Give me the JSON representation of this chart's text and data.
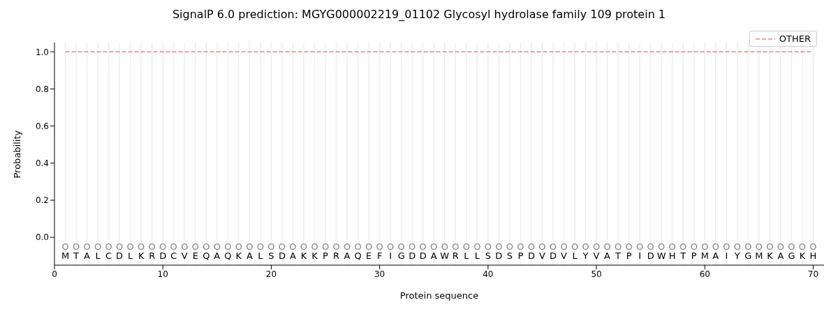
{
  "chart_data": {
    "type": "line",
    "title": "SignalP 6.0 prediction: MGYG000002219_01102 Glycosyl hydrolase family 109 protein 1",
    "xlabel": "Protein sequence",
    "ylabel": "Probability",
    "series": [
      {
        "name": "OTHER",
        "color": "#f08080",
        "line_style": "dashed",
        "x": [
          1,
          70
        ],
        "values": [
          1,
          1
        ]
      }
    ],
    "xlim": [
      0,
      71
    ],
    "xticks": [
      0,
      10,
      20,
      30,
      40,
      50,
      60,
      70
    ],
    "ylim": [
      -0.15,
      1.05
    ],
    "yticks": [
      {
        "value": 0,
        "label": "0.0"
      },
      {
        "value": 0.2,
        "label": "0.2"
      },
      {
        "value": 0.4,
        "label": "0.4"
      },
      {
        "value": 0.6,
        "label": "0.6"
      },
      {
        "value": 0.8,
        "label": "0.8"
      },
      {
        "value": 1,
        "label": "1.0"
      }
    ],
    "legend": "top right",
    "marker": "none",
    "ref_lines": [
      {
        "axis": "x",
        "value": 1,
        "color": "#eeeeee"
      },
      {
        "axis": "x",
        "value": 2,
        "color": "#eeeeee"
      },
      {
        "axis": "x",
        "value": 3,
        "color": "#eeeeee"
      },
      {
        "axis": "x",
        "value": 4,
        "color": "#eeeeee"
      },
      {
        "axis": "x",
        "value": 5,
        "color": "#eeeeee"
      },
      {
        "axis": "x",
        "value": 6,
        "color": "#eeeeee"
      },
      {
        "axis": "x",
        "value": 7,
        "color": "#eeeeee"
      },
      {
        "axis": "x",
        "value": 8,
        "color": "#eeeeee"
      },
      {
        "axis": "x",
        "value": 9,
        "color": "#eeeeee"
      },
      {
        "axis": "x",
        "value": 10,
        "color": "#eeeeee"
      },
      {
        "axis": "x",
        "value": 11,
        "color": "#eeeeee"
      },
      {
        "axis": "x",
        "value": 12,
        "color": "#eeeeee"
      },
      {
        "axis": "x",
        "value": 13,
        "color": "#eeeeee"
      },
      {
        "axis": "x",
        "value": 14,
        "color": "#eeeeee"
      },
      {
        "axis": "x",
        "value": 15,
        "color": "#eeeeee"
      },
      {
        "axis": "x",
        "value": 16,
        "color": "#eeeeee"
      },
      {
        "axis": "x",
        "value": 17,
        "color": "#eeeeee"
      },
      {
        "axis": "x",
        "value": 18,
        "color": "#eeeeee"
      },
      {
        "axis": "x",
        "value": 19,
        "color": "#eeeeee"
      },
      {
        "axis": "x",
        "value": 20,
        "color": "#eeeeee"
      },
      {
        "axis": "x",
        "value": 21,
        "color": "#eeeeee"
      },
      {
        "axis": "x",
        "value": 22,
        "color": "#eeeeee"
      },
      {
        "axis": "x",
        "value": 23,
        "color": "#eeeeee"
      },
      {
        "axis": "x",
        "value": 24,
        "color": "#eeeeee"
      },
      {
        "axis": "x",
        "value": 25,
        "color": "#eeeeee"
      },
      {
        "axis": "x",
        "value": 26,
        "color": "#eeeeee"
      },
      {
        "axis": "x",
        "value": 27,
        "color": "#eeeeee"
      },
      {
        "axis": "x",
        "value": 28,
        "color": "#eeeeee"
      },
      {
        "axis": "x",
        "value": 29,
        "color": "#eeeeee"
      },
      {
        "axis": "x",
        "value": 30,
        "color": "#eeeeee"
      },
      {
        "axis": "x",
        "value": 31,
        "color": "#eeeeee"
      },
      {
        "axis": "x",
        "value": 32,
        "color": "#eeeeee"
      },
      {
        "axis": "x",
        "value": 33,
        "color": "#eeeeee"
      },
      {
        "axis": "x",
        "value": 34,
        "color": "#eeeeee"
      },
      {
        "axis": "x",
        "value": 35,
        "color": "#eeeeee"
      },
      {
        "axis": "x",
        "value": 36,
        "color": "#eeeeee"
      },
      {
        "axis": "x",
        "value": 37,
        "color": "#eeeeee"
      },
      {
        "axis": "x",
        "value": 38,
        "color": "#eeeeee"
      },
      {
        "axis": "x",
        "value": 39,
        "color": "#eeeeee"
      },
      {
        "axis": "x",
        "value": 40,
        "color": "#eeeeee"
      },
      {
        "axis": "x",
        "value": 41,
        "color": "#eeeeee"
      },
      {
        "axis": "x",
        "value": 42,
        "color": "#eeeeee"
      },
      {
        "axis": "x",
        "value": 43,
        "color": "#eeeeee"
      },
      {
        "axis": "x",
        "value": 44,
        "color": "#eeeeee"
      },
      {
        "axis": "x",
        "value": 45,
        "color": "#eeeeee"
      },
      {
        "axis": "x",
        "value": 46,
        "color": "#eeeeee"
      },
      {
        "axis": "x",
        "value": 47,
        "color": "#eeeeee"
      },
      {
        "axis": "x",
        "value": 48,
        "color": "#eeeeee"
      },
      {
        "axis": "x",
        "value": 49,
        "color": "#eeeeee"
      },
      {
        "axis": "x",
        "value": 50,
        "color": "#eeeeee"
      },
      {
        "axis": "x",
        "value": 51,
        "color": "#eeeeee"
      },
      {
        "axis": "x",
        "value": 52,
        "color": "#eeeeee"
      },
      {
        "axis": "x",
        "value": 53,
        "color": "#eeeeee"
      },
      {
        "axis": "x",
        "value": 54,
        "color": "#eeeeee"
      },
      {
        "axis": "x",
        "value": 55,
        "color": "#eeeeee"
      },
      {
        "axis": "x",
        "value": 56,
        "color": "#eeeeee"
      },
      {
        "axis": "x",
        "value": 57,
        "color": "#eeeeee"
      },
      {
        "axis": "x",
        "value": 58,
        "color": "#eeeeee"
      },
      {
        "axis": "x",
        "value": 59,
        "color": "#eeeeee"
      },
      {
        "axis": "x",
        "value": 60,
        "color": "#eeeeee"
      },
      {
        "axis": "x",
        "value": 61,
        "color": "#eeeeee"
      },
      {
        "axis": "x",
        "value": 62,
        "color": "#eeeeee"
      },
      {
        "axis": "x",
        "value": 63,
        "color": "#eeeeee"
      },
      {
        "axis": "x",
        "value": 64,
        "color": "#eeeeee"
      },
      {
        "axis": "x",
        "value": 65,
        "color": "#eeeeee"
      },
      {
        "axis": "x",
        "value": 66,
        "color": "#eeeeee"
      },
      {
        "axis": "x",
        "value": 67,
        "color": "#eeeeee"
      },
      {
        "axis": "x",
        "value": 68,
        "color": "#eeeeee"
      },
      {
        "axis": "x",
        "value": 69,
        "color": "#eeeeee"
      },
      {
        "axis": "x",
        "value": 70,
        "color": "#eeeeee"
      }
    ],
    "annotations": [
      {
        "text": "O",
        "x": 1,
        "y": -0.05
      },
      {
        "text": "O",
        "x": 2,
        "y": -0.05
      },
      {
        "text": "O",
        "x": 3,
        "y": -0.05
      },
      {
        "text": "O",
        "x": 4,
        "y": -0.05
      },
      {
        "text": "O",
        "x": 5,
        "y": -0.05
      },
      {
        "text": "O",
        "x": 6,
        "y": -0.05
      },
      {
        "text": "O",
        "x": 7,
        "y": -0.05
      },
      {
        "text": "O",
        "x": 8,
        "y": -0.05
      },
      {
        "text": "O",
        "x": 9,
        "y": -0.05
      },
      {
        "text": "O",
        "x": 10,
        "y": -0.05
      },
      {
        "text": "O",
        "x": 11,
        "y": -0.05
      },
      {
        "text": "O",
        "x": 12,
        "y": -0.05
      },
      {
        "text": "O",
        "x": 13,
        "y": -0.05
      },
      {
        "text": "O",
        "x": 14,
        "y": -0.05
      },
      {
        "text": "O",
        "x": 15,
        "y": -0.05
      },
      {
        "text": "O",
        "x": 16,
        "y": -0.05
      },
      {
        "text": "O",
        "x": 17,
        "y": -0.05
      },
      {
        "text": "O",
        "x": 18,
        "y": -0.05
      },
      {
        "text": "O",
        "x": 19,
        "y": -0.05
      },
      {
        "text": "O",
        "x": 20,
        "y": -0.05
      },
      {
        "text": "O",
        "x": 21,
        "y": -0.05
      },
      {
        "text": "O",
        "x": 22,
        "y": -0.05
      },
      {
        "text": "O",
        "x": 23,
        "y": -0.05
      },
      {
        "text": "O",
        "x": 24,
        "y": -0.05
      },
      {
        "text": "O",
        "x": 25,
        "y": -0.05
      },
      {
        "text": "O",
        "x": 26,
        "y": -0.05
      },
      {
        "text": "O",
        "x": 27,
        "y": -0.05
      },
      {
        "text": "O",
        "x": 28,
        "y": -0.05
      },
      {
        "text": "O",
        "x": 29,
        "y": -0.05
      },
      {
        "text": "O",
        "x": 30,
        "y": -0.05
      },
      {
        "text": "O",
        "x": 31,
        "y": -0.05
      },
      {
        "text": "O",
        "x": 32,
        "y": -0.05
      },
      {
        "text": "O",
        "x": 33,
        "y": -0.05
      },
      {
        "text": "O",
        "x": 34,
        "y": -0.05
      },
      {
        "text": "O",
        "x": 35,
        "y": -0.05
      },
      {
        "text": "O",
        "x": 36,
        "y": -0.05
      },
      {
        "text": "O",
        "x": 37,
        "y": -0.05
      },
      {
        "text": "O",
        "x": 38,
        "y": -0.05
      },
      {
        "text": "O",
        "x": 39,
        "y": -0.05
      },
      {
        "text": "O",
        "x": 40,
        "y": -0.05
      },
      {
        "text": "O",
        "x": 41,
        "y": -0.05
      },
      {
        "text": "O",
        "x": 42,
        "y": -0.05
      },
      {
        "text": "O",
        "x": 43,
        "y": -0.05
      },
      {
        "text": "O",
        "x": 44,
        "y": -0.05
      },
      {
        "text": "O",
        "x": 45,
        "y": -0.05
      },
      {
        "text": "O",
        "x": 46,
        "y": -0.05
      },
      {
        "text": "O",
        "x": 47,
        "y": -0.05
      },
      {
        "text": "O",
        "x": 48,
        "y": -0.05
      },
      {
        "text": "O",
        "x": 49,
        "y": -0.05
      },
      {
        "text": "O",
        "x": 50,
        "y": -0.05
      },
      {
        "text": "O",
        "x": 51,
        "y": -0.05
      },
      {
        "text": "O",
        "x": 52,
        "y": -0.05
      },
      {
        "text": "O",
        "x": 53,
        "y": -0.05
      },
      {
        "text": "O",
        "x": 54,
        "y": -0.05
      },
      {
        "text": "O",
        "x": 55,
        "y": -0.05
      },
      {
        "text": "O",
        "x": 56,
        "y": -0.05
      },
      {
        "text": "O",
        "x": 57,
        "y": -0.05
      },
      {
        "text": "O",
        "x": 58,
        "y": -0.05
      },
      {
        "text": "O",
        "x": 59,
        "y": -0.05
      },
      {
        "text": "O",
        "x": 60,
        "y": -0.05
      },
      {
        "text": "O",
        "x": 61,
        "y": -0.05
      },
      {
        "text": "O",
        "x": 62,
        "y": -0.05
      },
      {
        "text": "O",
        "x": 63,
        "y": -0.05
      },
      {
        "text": "O",
        "x": 64,
        "y": -0.05
      },
      {
        "text": "O",
        "x": 65,
        "y": -0.05
      },
      {
        "text": "O",
        "x": 66,
        "y": -0.05
      },
      {
        "text": "O",
        "x": 67,
        "y": -0.05
      },
      {
        "text": "O",
        "x": 68,
        "y": -0.05
      },
      {
        "text": "O",
        "x": 69,
        "y": -0.05
      },
      {
        "text": "O",
        "x": 70,
        "y": -0.05
      },
      {
        "text": "M",
        "x": 1,
        "y": -0.1
      },
      {
        "text": "T",
        "x": 2,
        "y": -0.1
      },
      {
        "text": "A",
        "x": 3,
        "y": -0.1
      },
      {
        "text": "L",
        "x": 4,
        "y": -0.1
      },
      {
        "text": "C",
        "x": 5,
        "y": -0.1
      },
      {
        "text": "D",
        "x": 6,
        "y": -0.1
      },
      {
        "text": "L",
        "x": 7,
        "y": -0.1
      },
      {
        "text": "K",
        "x": 8,
        "y": -0.1
      },
      {
        "text": "R",
        "x": 9,
        "y": -0.1
      },
      {
        "text": "D",
        "x": 10,
        "y": -0.1
      },
      {
        "text": "C",
        "x": 11,
        "y": -0.1
      },
      {
        "text": "V",
        "x": 12,
        "y": -0.1
      },
      {
        "text": "E",
        "x": 13,
        "y": -0.1
      },
      {
        "text": "Q",
        "x": 14,
        "y": -0.1
      },
      {
        "text": "A",
        "x": 15,
        "y": -0.1
      },
      {
        "text": "Q",
        "x": 16,
        "y": -0.1
      },
      {
        "text": "K",
        "x": 17,
        "y": -0.1
      },
      {
        "text": "A",
        "x": 18,
        "y": -0.1
      },
      {
        "text": "L",
        "x": 19,
        "y": -0.1
      },
      {
        "text": "S",
        "x": 20,
        "y": -0.1
      },
      {
        "text": "D",
        "x": 21,
        "y": -0.1
      },
      {
        "text": "A",
        "x": 22,
        "y": -0.1
      },
      {
        "text": "K",
        "x": 23,
        "y": -0.1
      },
      {
        "text": "K",
        "x": 24,
        "y": -0.1
      },
      {
        "text": "P",
        "x": 25,
        "y": -0.1
      },
      {
        "text": "R",
        "x": 26,
        "y": -0.1
      },
      {
        "text": "A",
        "x": 27,
        "y": -0.1
      },
      {
        "text": "Q",
        "x": 28,
        "y": -0.1
      },
      {
        "text": "E",
        "x": 29,
        "y": -0.1
      },
      {
        "text": "F",
        "x": 30,
        "y": -0.1
      },
      {
        "text": "I",
        "x": 31,
        "y": -0.1
      },
      {
        "text": "G",
        "x": 32,
        "y": -0.1
      },
      {
        "text": "D",
        "x": 33,
        "y": -0.1
      },
      {
        "text": "D",
        "x": 34,
        "y": -0.1
      },
      {
        "text": "A",
        "x": 35,
        "y": -0.1
      },
      {
        "text": "W",
        "x": 36,
        "y": -0.1
      },
      {
        "text": "R",
        "x": 37,
        "y": -0.1
      },
      {
        "text": "L",
        "x": 38,
        "y": -0.1
      },
      {
        "text": "L",
        "x": 39,
        "y": -0.1
      },
      {
        "text": "S",
        "x": 40,
        "y": -0.1
      },
      {
        "text": "D",
        "x": 41,
        "y": -0.1
      },
      {
        "text": "S",
        "x": 42,
        "y": -0.1
      },
      {
        "text": "P",
        "x": 43,
        "y": -0.1
      },
      {
        "text": "D",
        "x": 44,
        "y": -0.1
      },
      {
        "text": "V",
        "x": 45,
        "y": -0.1
      },
      {
        "text": "D",
        "x": 46,
        "y": -0.1
      },
      {
        "text": "V",
        "x": 47,
        "y": -0.1
      },
      {
        "text": "L",
        "x": 48,
        "y": -0.1
      },
      {
        "text": "Y",
        "x": 49,
        "y": -0.1
      },
      {
        "text": "V",
        "x": 50,
        "y": -0.1
      },
      {
        "text": "A",
        "x": 51,
        "y": -0.1
      },
      {
        "text": "T",
        "x": 52,
        "y": -0.1
      },
      {
        "text": "P",
        "x": 53,
        "y": -0.1
      },
      {
        "text": "I",
        "x": 54,
        "y": -0.1
      },
      {
        "text": "D",
        "x": 55,
        "y": -0.1
      },
      {
        "text": "W",
        "x": 56,
        "y": -0.1
      },
      {
        "text": "H",
        "x": 57,
        "y": -0.1
      },
      {
        "text": "T",
        "x": 58,
        "y": -0.1
      },
      {
        "text": "P",
        "x": 59,
        "y": -0.1
      },
      {
        "text": "M",
        "x": 60,
        "y": -0.1
      },
      {
        "text": "A",
        "x": 61,
        "y": -0.1
      },
      {
        "text": "I",
        "x": 62,
        "y": -0.1
      },
      {
        "text": "Y",
        "x": 63,
        "y": -0.1
      },
      {
        "text": "G",
        "x": 64,
        "y": -0.1
      },
      {
        "text": "M",
        "x": 65,
        "y": -0.1
      },
      {
        "text": "K",
        "x": 66,
        "y": -0.1
      },
      {
        "text": "A",
        "x": 67,
        "y": -0.1
      },
      {
        "text": "G",
        "x": 68,
        "y": -0.1
      },
      {
        "text": "K",
        "x": 69,
        "y": -0.1
      },
      {
        "text": "H",
        "x": 70,
        "y": -0.1
      }
    ]
  }
}
